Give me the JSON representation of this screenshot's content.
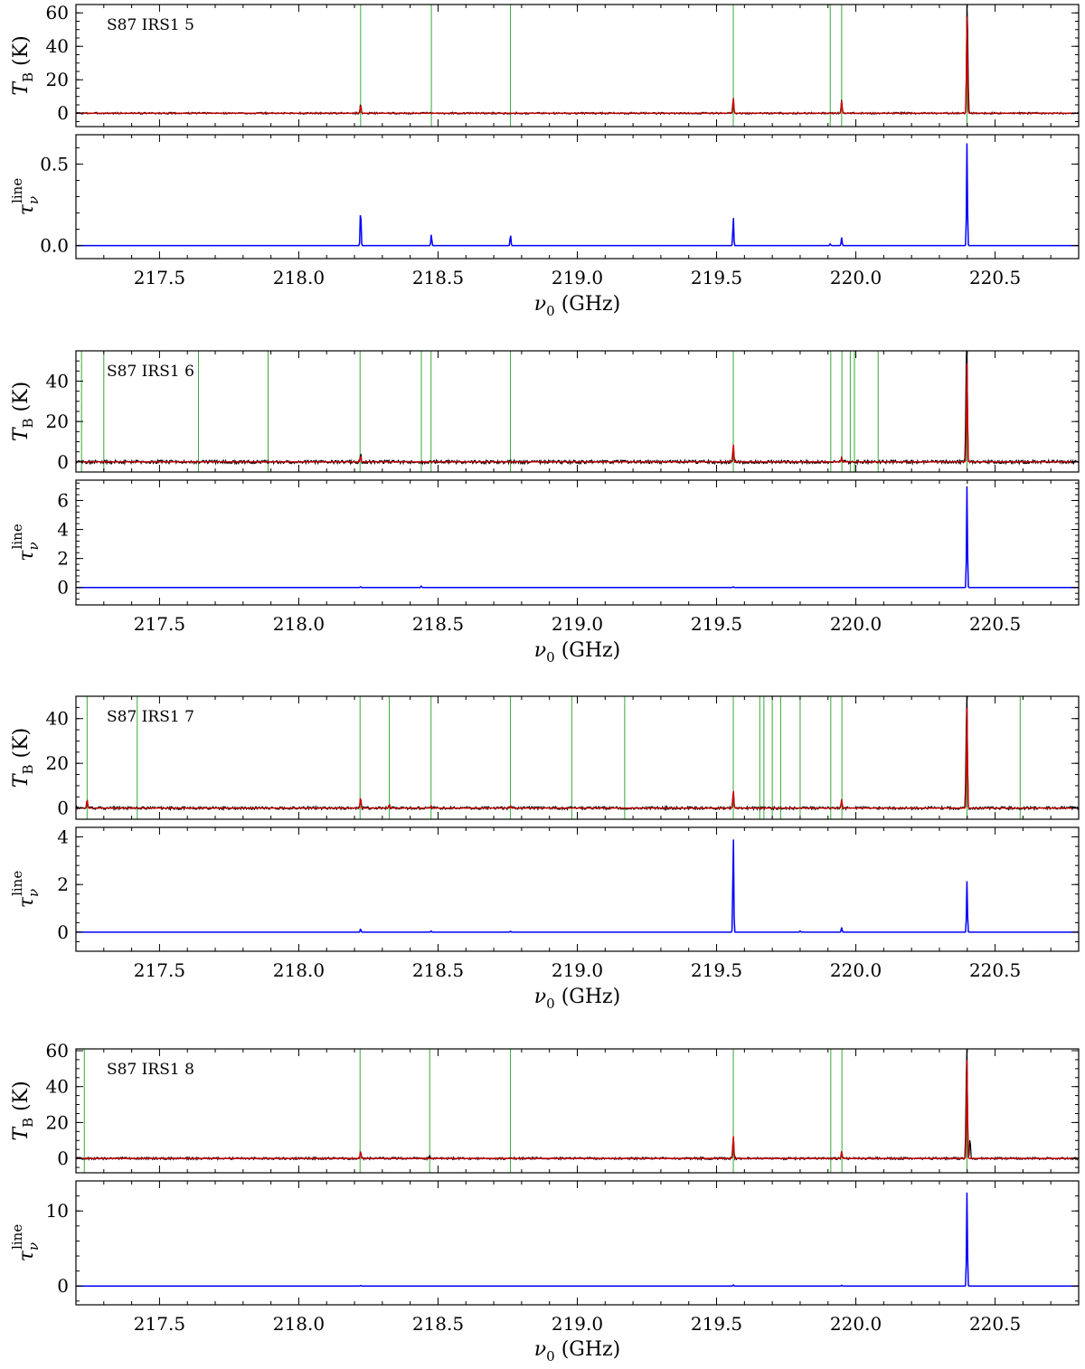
{
  "chart_data": [
    {
      "type": "line",
      "panel_label": "S87 IRS1 5",
      "xlabel": "ν₀ (GHz)",
      "xlim": [
        217.2,
        220.8
      ],
      "xticks": [
        "217.5",
        "218.0",
        "218.5",
        "219.0",
        "219.5",
        "220.0",
        "220.5"
      ],
      "grid": false,
      "top": {
        "ylabel": "T_B (K)",
        "ylim": [
          -8,
          65
        ],
        "yticks": [
          0,
          20,
          40,
          60
        ],
        "ytick_labels": [
          "0",
          "20",
          "40",
          "60"
        ],
        "line_markers_ghz": [
          218.222,
          218.476,
          218.76,
          219.56,
          219.908,
          219.949,
          220.399
        ],
        "series": [
          {
            "role": "observed",
            "color": "#000000",
            "noise": 0.5,
            "peaks": [
              [
                218.222,
                5.5
              ],
              [
                219.56,
                9
              ],
              [
                219.949,
                8
              ],
              [
                220.399,
                60
              ],
              [
                220.402,
                28
              ]
            ]
          },
          {
            "role": "model",
            "color": "#cc0000",
            "noise": 0,
            "peaks": [
              [
                218.222,
                5
              ],
              [
                219.56,
                9.5
              ],
              [
                219.949,
                7.5
              ],
              [
                220.399,
                58
              ]
            ]
          }
        ]
      },
      "bottom": {
        "ylabel": "τ_ν^line",
        "ylim": [
          -0.08,
          0.68
        ],
        "yticks": [
          0,
          0.5
        ],
        "ytick_labels": [
          "0.0",
          "0.5"
        ],
        "series": [
          {
            "role": "optical_depth",
            "color": "#0000ff",
            "peaks": [
              [
                218.222,
                0.24
              ],
              [
                218.476,
                0.07
              ],
              [
                218.76,
                0.07
              ],
              [
                219.56,
                0.18
              ],
              [
                219.908,
                0.01
              ],
              [
                219.949,
                0.05
              ],
              [
                220.399,
                0.63
              ]
            ]
          }
        ]
      }
    },
    {
      "type": "line",
      "panel_label": "S87 IRS1 6",
      "xlabel": "ν₀ (GHz)",
      "xlim": [
        217.2,
        220.8
      ],
      "xticks": [
        "217.5",
        "218.0",
        "218.5",
        "219.0",
        "219.5",
        "220.0",
        "220.5"
      ],
      "grid": false,
      "top": {
        "ylabel": "T_B (K)",
        "ylim": [
          -5,
          55
        ],
        "yticks": [
          0,
          20,
          40
        ],
        "ytick_labels": [
          "0",
          "20",
          "40"
        ],
        "line_markers_ghz": [
          217.22,
          217.3,
          217.64,
          217.89,
          218.22,
          218.44,
          218.475,
          218.76,
          219.56,
          219.91,
          219.95,
          219.98,
          219.995,
          220.08,
          220.399
        ],
        "series": [
          {
            "role": "observed",
            "color": "#000000",
            "noise": 0.8,
            "peaks": [
              [
                218.222,
                4
              ],
              [
                219.56,
                8
              ],
              [
                219.949,
                2
              ],
              [
                220.399,
                50
              ],
              [
                220.396,
                35
              ]
            ]
          },
          {
            "role": "model",
            "color": "#cc0000",
            "noise": 0,
            "peaks": [
              [
                218.222,
                3
              ],
              [
                219.56,
                9
              ],
              [
                219.949,
                2
              ],
              [
                220.399,
                49
              ]
            ]
          }
        ]
      },
      "bottom": {
        "ylabel": "τ_ν^line",
        "ylim": [
          -1.2,
          7.4
        ],
        "yticks": [
          0,
          2,
          4,
          6
        ],
        "ytick_labels": [
          "0",
          "2",
          "4",
          "6"
        ],
        "series": [
          {
            "role": "optical_depth",
            "color": "#0000ff",
            "peaks": [
              [
                218.222,
                0.06
              ],
              [
                218.44,
                0.1
              ],
              [
                219.56,
                0.05
              ],
              [
                220.399,
                7.0
              ]
            ]
          }
        ]
      }
    },
    {
      "type": "line",
      "panel_label": "S87 IRS1 7",
      "xlabel": "ν₀ (GHz)",
      "xlim": [
        217.2,
        220.8
      ],
      "xticks": [
        "217.5",
        "218.0",
        "218.5",
        "219.0",
        "219.5",
        "220.0",
        "220.5"
      ],
      "grid": false,
      "top": {
        "ylabel": "T_B (K)",
        "ylim": [
          -5,
          50
        ],
        "yticks": [
          0,
          20,
          40
        ],
        "ytick_labels": [
          "0",
          "20",
          "40"
        ],
        "line_markers_ghz": [
          217.24,
          217.42,
          218.22,
          218.325,
          218.475,
          218.76,
          218.98,
          219.17,
          219.56,
          219.655,
          219.67,
          219.7,
          219.73,
          219.8,
          219.91,
          219.95,
          220.399,
          220.59
        ],
        "series": [
          {
            "role": "observed",
            "color": "#000000",
            "noise": 0.6,
            "peaks": [
              [
                217.24,
                3
              ],
              [
                218.222,
                4.5
              ],
              [
                218.325,
                1.5
              ],
              [
                219.56,
                8
              ],
              [
                219.949,
                3
              ],
              [
                220.399,
                46
              ],
              [
                220.396,
                22
              ]
            ]
          },
          {
            "role": "model",
            "color": "#cc0000",
            "noise": 0,
            "peaks": [
              [
                217.24,
                4
              ],
              [
                218.222,
                5
              ],
              [
                218.325,
                1.5
              ],
              [
                218.475,
                1
              ],
              [
                218.76,
                1
              ],
              [
                219.56,
                8
              ],
              [
                219.949,
                4
              ],
              [
                220.399,
                45
              ]
            ]
          }
        ]
      },
      "bottom": {
        "ylabel": "τ_ν^line",
        "ylim": [
          -0.8,
          4.4
        ],
        "yticks": [
          0,
          2,
          4
        ],
        "ytick_labels": [
          "0",
          "2",
          "4"
        ],
        "series": [
          {
            "role": "optical_depth",
            "color": "#0000ff",
            "peaks": [
              [
                218.222,
                0.15
              ],
              [
                218.475,
                0.05
              ],
              [
                218.76,
                0.04
              ],
              [
                219.56,
                4.15
              ],
              [
                219.8,
                0.05
              ],
              [
                219.949,
                0.2
              ],
              [
                220.399,
                2.15
              ]
            ]
          }
        ]
      }
    },
    {
      "type": "line",
      "panel_label": "S87 IRS1 8",
      "xlabel": "ν₀ (GHz)",
      "xlim": [
        217.2,
        220.8
      ],
      "xticks": [
        "217.5",
        "218.0",
        "218.5",
        "219.0",
        "219.5",
        "220.0",
        "220.5"
      ],
      "grid": false,
      "top": {
        "ylabel": "T_B (K)",
        "ylim": [
          -8,
          61
        ],
        "yticks": [
          0,
          20,
          40,
          60
        ],
        "ytick_labels": [
          "0",
          "20",
          "40",
          "60"
        ],
        "line_markers_ghz": [
          217.23,
          218.22,
          218.47,
          218.76,
          219.56,
          219.91,
          219.95,
          220.399
        ],
        "series": [
          {
            "role": "observed",
            "color": "#000000",
            "noise": 0.6,
            "peaks": [
              [
                218.222,
                4.5
              ],
              [
                218.47,
                1.5
              ],
              [
                219.56,
                13
              ],
              [
                219.949,
                4
              ],
              [
                220.399,
                55
              ],
              [
                220.396,
                27
              ],
              [
                220.41,
                12
              ]
            ]
          },
          {
            "role": "model",
            "color": "#cc0000",
            "noise": 0,
            "peaks": [
              [
                218.222,
                4
              ],
              [
                219.56,
                13
              ],
              [
                219.949,
                4
              ],
              [
                220.399,
                55
              ]
            ]
          }
        ]
      },
      "bottom": {
        "ylabel": "τ_ν^line",
        "ylim": [
          -2.5,
          14
        ],
        "yticks": [
          0,
          10
        ],
        "ytick_labels": [
          "0",
          "10"
        ],
        "series": [
          {
            "role": "optical_depth",
            "color": "#0000ff",
            "peaks": [
              [
                218.222,
                0.1
              ],
              [
                219.56,
                0.15
              ],
              [
                219.949,
                0.1
              ],
              [
                220.399,
                12.5
              ]
            ]
          }
        ]
      }
    }
  ]
}
